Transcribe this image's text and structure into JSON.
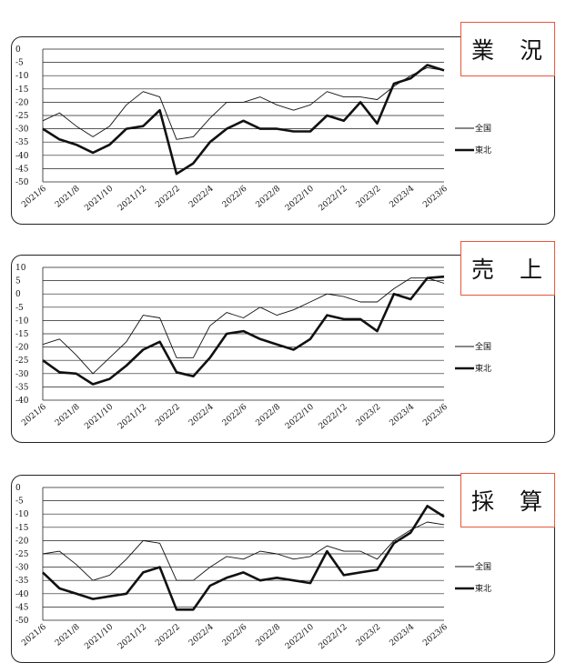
{
  "chart_data": [
    {
      "type": "line",
      "title": "業 況",
      "x": [
        "2021/6",
        "2021/7",
        "2021/8",
        "2021/9",
        "2021/10",
        "2021/11",
        "2021/12",
        "2022/1",
        "2022/2",
        "2022/3",
        "2022/4",
        "2022/5",
        "2022/6",
        "2022/7",
        "2022/8",
        "2022/9",
        "2022/10",
        "2022/11",
        "2022/12",
        "2023/1",
        "2023/2",
        "2023/3",
        "2023/4",
        "2023/5",
        "2023/6"
      ],
      "x_tick_labels": [
        "2021/6",
        "2021/8",
        "2021/10",
        "2021/12",
        "2022/2",
        "2022/4",
        "2022/6",
        "2022/8",
        "2022/10",
        "2022/12",
        "2023/2",
        "2023/4",
        "2023/6"
      ],
      "ylim": [
        -50,
        0
      ],
      "y_ticks": [
        0,
        -5,
        -10,
        -15,
        -20,
        -25,
        -30,
        -35,
        -40,
        -45,
        -50
      ],
      "series": [
        {
          "name": "全国",
          "values": [
            -27,
            -24,
            -29,
            -33,
            -29,
            -21,
            -16,
            -18,
            -34,
            -33,
            -26,
            -20,
            -20,
            -18,
            -21,
            -23,
            -21,
            -16,
            -18,
            -18,
            -19,
            -14,
            -10,
            -7,
            -8
          ]
        },
        {
          "name": "東北",
          "values": [
            -30,
            -34,
            -36,
            -39,
            -36,
            -30,
            -29,
            -23,
            -47,
            -43,
            -35,
            -30,
            -27,
            -30,
            -30,
            -31,
            -31,
            -25,
            -27,
            -20,
            -28,
            -13,
            -11,
            -6,
            -8
          ]
        }
      ]
    },
    {
      "type": "line",
      "title": "売 上",
      "x": [
        "2021/6",
        "2021/7",
        "2021/8",
        "2021/9",
        "2021/10",
        "2021/11",
        "2021/12",
        "2022/1",
        "2022/2",
        "2022/3",
        "2022/4",
        "2022/5",
        "2022/6",
        "2022/7",
        "2022/8",
        "2022/9",
        "2022/10",
        "2022/11",
        "2022/12",
        "2023/1",
        "2023/2",
        "2023/3",
        "2023/4",
        "2023/5",
        "2023/6"
      ],
      "x_tick_labels": [
        "2021/6",
        "2021/8",
        "2021/10",
        "2021/12",
        "2022/2",
        "2022/4",
        "2022/6",
        "2022/8",
        "2022/10",
        "2022/12",
        "2023/2",
        "2023/4",
        "2023/6"
      ],
      "ylim": [
        -40,
        10
      ],
      "y_ticks": [
        10,
        5,
        0,
        -5,
        -10,
        -15,
        -20,
        -25,
        -30,
        -35,
        -40
      ],
      "series": [
        {
          "name": "全国",
          "values": [
            -19,
            -17,
            -23,
            -30,
            -24,
            -18,
            -8,
            -9,
            -24,
            -24,
            -12,
            -7,
            -9,
            -5,
            -8,
            -6,
            -3,
            0,
            -1,
            -3,
            -3,
            2,
            6,
            6,
            4
          ]
        },
        {
          "name": "東北",
          "values": [
            -25,
            -29.5,
            -30,
            -34,
            -32,
            -27,
            -21,
            -18,
            -29.5,
            -31,
            -24,
            -15,
            -14,
            -17,
            -19,
            -21,
            -17,
            -8,
            -9.5,
            -9.5,
            -14,
            0,
            -2,
            6,
            6.5
          ]
        }
      ]
    },
    {
      "type": "line",
      "title": "採 算",
      "x": [
        "2021/6",
        "2021/7",
        "2021/8",
        "2021/9",
        "2021/10",
        "2021/11",
        "2021/12",
        "2022/1",
        "2022/2",
        "2022/3",
        "2022/4",
        "2022/5",
        "2022/6",
        "2022/7",
        "2022/8",
        "2022/9",
        "2022/10",
        "2022/11",
        "2022/12",
        "2023/1",
        "2023/2",
        "2023/3",
        "2023/4",
        "2023/5",
        "2023/6"
      ],
      "x_tick_labels": [
        "2021/6",
        "2021/8",
        "2021/10",
        "2021/12",
        "2022/2",
        "2022/4",
        "2022/6",
        "2022/8",
        "2022/10",
        "2022/12",
        "2023/2",
        "2023/4",
        "2023/6"
      ],
      "ylim": [
        -50,
        0
      ],
      "y_ticks": [
        0,
        -5,
        -10,
        -15,
        -20,
        -25,
        -30,
        -35,
        -40,
        -45,
        -50
      ],
      "series": [
        {
          "name": "全国",
          "values": [
            -25,
            -24,
            -29,
            -35,
            -33,
            -27,
            -20,
            -21,
            -35,
            -35,
            -30,
            -26,
            -27,
            -24,
            -25,
            -27,
            -26,
            -22,
            -24,
            -24,
            -27,
            -20,
            -16,
            -13,
            -14
          ]
        },
        {
          "name": "東北",
          "values": [
            -32,
            -38,
            -40,
            -42,
            -41,
            -40,
            -32,
            -30,
            -46,
            -46,
            -37,
            -34,
            -32,
            -35,
            -34,
            -35,
            -36,
            -24,
            -33,
            -32,
            -31,
            -21,
            -17,
            -7,
            -11
          ]
        }
      ]
    }
  ]
}
